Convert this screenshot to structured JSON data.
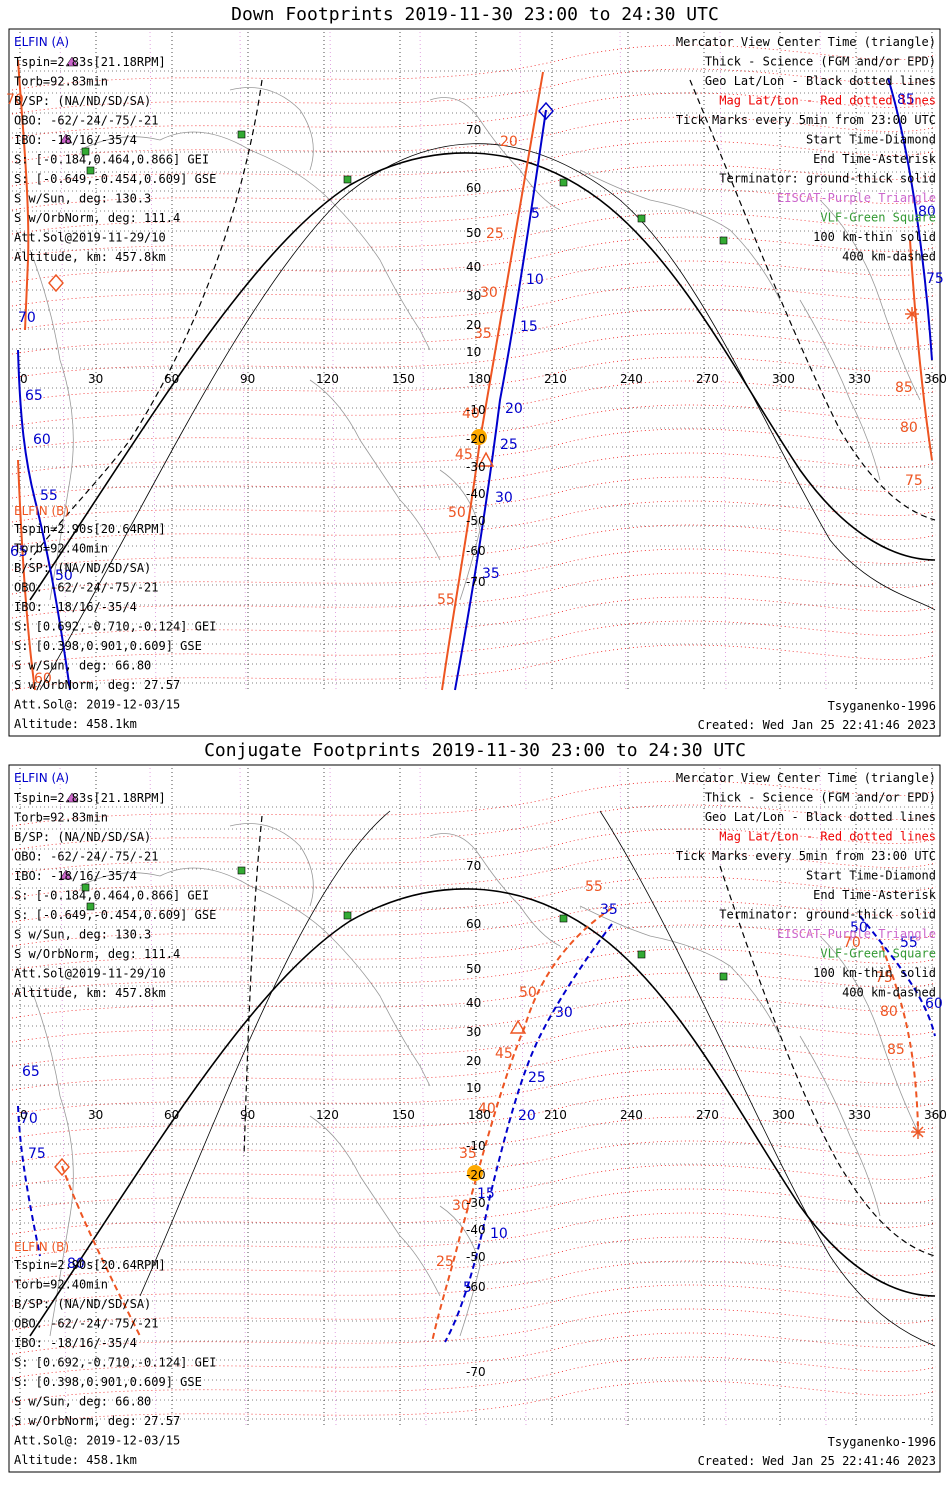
{
  "colors": {
    "elfin_a": "#0000cc",
    "elfin_b": "#ee5522",
    "mag_grid": "#ee0000",
    "geo_grid": "#000000",
    "eiscat": "#cc66cc",
    "vlf": "#339933",
    "coast": "#999999"
  },
  "icons": [
    "triangle-marker",
    "diamond-marker",
    "asterisk-marker",
    "square-marker",
    "sun-marker"
  ],
  "lon_ticks": [
    "0",
    "30",
    "60",
    "90",
    "120",
    "150",
    "180",
    "210",
    "240",
    "270",
    "300",
    "330",
    "360"
  ],
  "lat_ticks_down": [
    "70",
    "60",
    "50",
    "40",
    "30",
    "20",
    "10",
    "-10",
    "-20",
    "-30",
    "-40",
    "-50",
    "-60",
    "-70"
  ],
  "lat_ticks_conj": [
    "70",
    "60",
    "50",
    "40",
    "30",
    "20",
    "10",
    "-10",
    "-20",
    "-30",
    "-40",
    "-50",
    "-60",
    "-70"
  ],
  "legend": [
    "Mercator View Center Time (triangle)",
    "Thick - Science (FGM and/or EPD)",
    "Geo Lat/Lon - Black dotted lines",
    "Mag Lat/Lon - Red dotted lines",
    "Tick Marks every 5min from 23:00 UTC",
    "Start Time-Diamond",
    "End Time-Asterisk",
    "Terminator: ground-thick solid",
    "EISCAT-Purple Triangle",
    "VLF-Green Square",
    "100 km-thin solid",
    "400 km-dashed"
  ],
  "elfin_a": {
    "name": "ELFIN (A)",
    "lines": [
      "Tspin=2.83s[21.18RPM]",
      "Torb=92.83min",
      "B/SP: (NA/ND/SD/SA)",
      "OBO: -62/-24/-75/-21",
      "IBO: -18/16/-35/4",
      "S: [-0.184,0.464,0.866] GEI",
      "S: [-0.649,-0.454,0.609] GSE",
      "S w/Sun, deg: 130.3",
      "S w/OrbNorm, deg: 111.4",
      "Att.Sol@2019-11-29/10",
      "Altitude, km: 457.8km"
    ]
  },
  "elfin_b": {
    "name": "ELFIN (B)",
    "lines": [
      "Tspin=2.90s[20.64RPM]",
      "Torb=92.40min",
      "B/SP: (NA/ND/SD/SA)",
      "OBO: -62/-24/-75/-21",
      "IBO: -18/16/-35/4",
      "S: [0.692,-0.710,-0.124] GEI",
      "S: [0.398,0.901,0.609] GSE",
      "S w/Sun, deg: 66.80",
      "S w/OrbNorm, deg: 27.57",
      "Att.Sol@: 2019-12-03/15",
      "Altitude: 458.1km"
    ]
  },
  "footer": {
    "model": "Tsyganenko-1996",
    "created": "Created: Wed Jan 25 22:41:46 2023"
  },
  "panels": [
    {
      "id": "down",
      "title": "Down Footprints 2019-11-30 23:00 to 24:30 UTC",
      "elfin_a_track": {
        "tick_labels": [
          "5",
          "10",
          "15",
          "20",
          "25",
          "30",
          "35"
        ]
      },
      "elfin_b_track": {
        "tick_labels": [
          "20",
          "25",
          "30",
          "35",
          "40",
          "45",
          "50",
          "55"
        ]
      },
      "mag_lat_labels": [
        "85",
        "80",
        "75",
        "70",
        "65",
        "60",
        "55",
        "50",
        "85",
        "80",
        "75",
        "70",
        "65",
        "60"
      ]
    },
    {
      "id": "conjugate",
      "title": "Conjugate Footprints 2019-11-30 23:00 to 24:30 UTC",
      "elfin_a_track": {
        "tick_labels": [
          "5",
          "10",
          "15",
          "20",
          "25",
          "30",
          "35"
        ]
      },
      "elfin_b_track": {
        "tick_labels": [
          "25",
          "30",
          "35",
          "40",
          "45",
          "50",
          "55"
        ]
      },
      "mag_lat_labels": [
        "65",
        "70",
        "75",
        "80",
        "50",
        "55",
        "60",
        "70",
        "75",
        "80",
        "85"
      ]
    }
  ]
}
